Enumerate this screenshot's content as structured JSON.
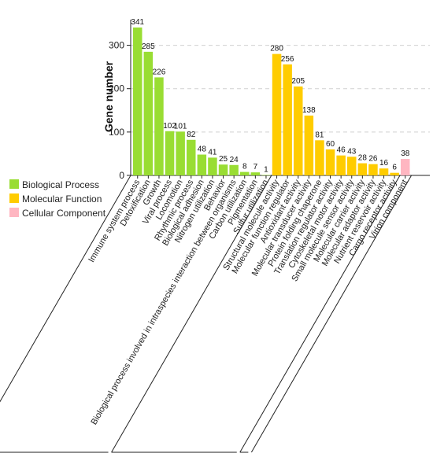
{
  "chart_data": {
    "type": "bar",
    "ylabel": "Gene number",
    "ylim": [
      0,
      350
    ],
    "yticks": [
      0,
      100,
      200,
      300
    ],
    "grid": "horizontal-dashed",
    "legend_position": "left",
    "groups": [
      {
        "name": "Biological Process",
        "color": "#99dd33"
      },
      {
        "name": "Molecular Function",
        "color": "#ffcc00"
      },
      {
        "name": "Cellular Component",
        "color": "#ffb6c1"
      }
    ],
    "bars": [
      {
        "label": "Immune system process",
        "value": 341,
        "group": 0,
        "highlight": false
      },
      {
        "label": "Detoxification",
        "value": 285,
        "group": 0,
        "highlight": false
      },
      {
        "label": "Growth",
        "value": 226,
        "group": 0,
        "highlight": false
      },
      {
        "label": "Viral process",
        "value": 102,
        "group": 0,
        "highlight": false
      },
      {
        "label": "Locomotion",
        "value": 101,
        "group": 0,
        "highlight": false
      },
      {
        "label": "Rhythmic process",
        "value": 82,
        "group": 0,
        "highlight": false
      },
      {
        "label": "Biological adhesion",
        "value": 48,
        "group": 0,
        "highlight": false
      },
      {
        "label": "Nitrogen utilization",
        "value": 41,
        "group": 0,
        "highlight": true
      },
      {
        "label": "Behavior",
        "value": 25,
        "group": 0,
        "highlight": false
      },
      {
        "label": "Biological process involved in intraspecies interaction between organisms",
        "value": 24,
        "group": 0,
        "highlight": false
      },
      {
        "label": "Carbon utilization",
        "value": 8,
        "group": 0,
        "highlight": true
      },
      {
        "label": "Pigmentation",
        "value": 7,
        "group": 0,
        "highlight": false
      },
      {
        "label": "Sulfur utilization",
        "value": 1,
        "group": 0,
        "highlight": true
      },
      {
        "label": "Structural molecule activity",
        "value": 280,
        "group": 1,
        "highlight": false
      },
      {
        "label": "Molecular function regulator",
        "value": 256,
        "group": 1,
        "highlight": false
      },
      {
        "label": "Antioxidant activity",
        "value": 205,
        "group": 1,
        "highlight": false
      },
      {
        "label": "Molecular transducer activity",
        "value": 138,
        "group": 1,
        "highlight": false
      },
      {
        "label": "Protein folding chaperone",
        "value": 81,
        "group": 1,
        "highlight": false
      },
      {
        "label": "Translation regulator activity",
        "value": 60,
        "group": 1,
        "highlight": false
      },
      {
        "label": "Cytoskeletal motor activity",
        "value": 46,
        "group": 1,
        "highlight": false
      },
      {
        "label": "Small molecule sensor activity",
        "value": 43,
        "group": 1,
        "highlight": false
      },
      {
        "label": "Molecular carrier activity",
        "value": 28,
        "group": 1,
        "highlight": false
      },
      {
        "label": "Molecular adaptor activity",
        "value": 26,
        "group": 1,
        "highlight": false
      },
      {
        "label": "Nutrient reservoir activity",
        "value": 16,
        "group": 1,
        "highlight": false
      },
      {
        "label": "Cargo receptor activity",
        "value": 6,
        "group": 1,
        "highlight": false
      },
      {
        "label": "Virion component",
        "value": 38,
        "group": 2,
        "highlight": false
      }
    ],
    "highlight_color": "#b22222"
  }
}
